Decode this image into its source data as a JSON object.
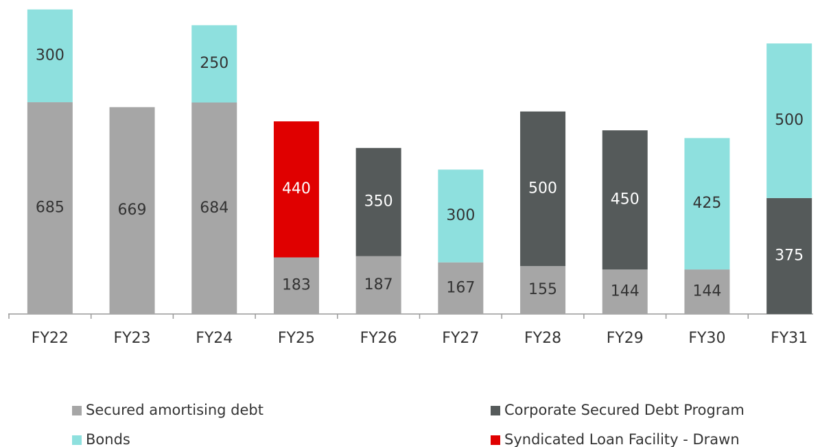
{
  "chart_data": {
    "type": "stacked_bar",
    "categories": [
      "FY22",
      "FY23",
      "FY24",
      "FY25",
      "FY26",
      "FY27",
      "FY28",
      "FY29",
      "FY30",
      "FY31"
    ],
    "series": [
      {
        "name": "Secured amortising debt",
        "color": "#a6a6a6",
        "values": [
          685,
          669,
          684,
          183,
          187,
          167,
          155,
          144,
          144,
          null
        ]
      },
      {
        "name": "Syndicated Loan Facility - Drawn",
        "color": "#e00000",
        "values": [
          null,
          null,
          null,
          440,
          null,
          null,
          null,
          null,
          null,
          null
        ]
      },
      {
        "name": "Corporate Secured Debt Program",
        "color": "#555a5a",
        "values": [
          null,
          null,
          null,
          null,
          350,
          null,
          500,
          450,
          null,
          375
        ]
      },
      {
        "name": "Bonds",
        "color": "#8ee0de",
        "values": [
          300,
          null,
          250,
          null,
          null,
          300,
          null,
          null,
          425,
          500
        ]
      }
    ],
    "ylim": [
      0,
      1000
    ]
  }
}
